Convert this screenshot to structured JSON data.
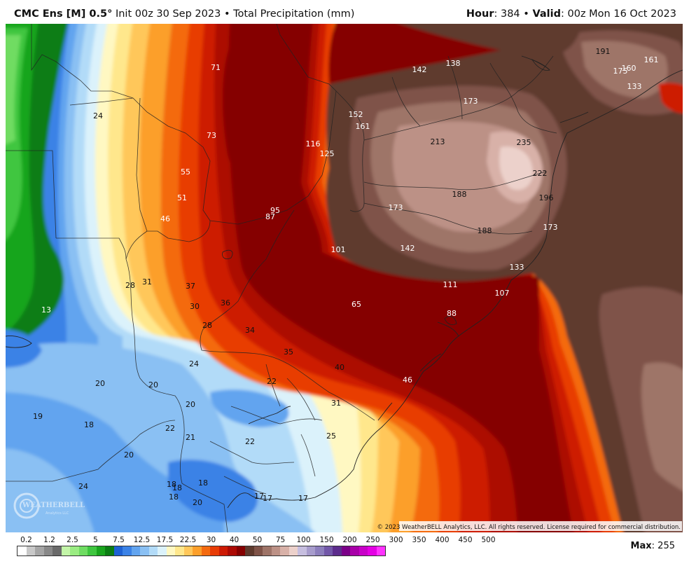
{
  "header": {
    "model_name": "CMC Ens [M] 0.5°",
    "init_text": "Init 00z 30 Sep 2023",
    "separator": "•",
    "field_name": "Total Precipitation (mm)",
    "hour_label": "Hour",
    "hour_value": "384",
    "valid_label": "Valid",
    "valid_value": "00z Mon 16 Oct 2023"
  },
  "watermark": {
    "logo_text": "WEATHERBELL",
    "logo_subtext": "Analytics LLC"
  },
  "copyright": "© 2023 WeatherBELL Analytics, LLC. All rights reserved. License required for commercial distribution.",
  "value_labels": [
    {
      "text": "71",
      "color": "#ffffff"
    },
    {
      "text": "24",
      "color": "#111111"
    },
    {
      "text": "73",
      "color": "#ffffff"
    },
    {
      "text": "55",
      "color": "#ffffff"
    },
    {
      "text": "51",
      "color": "#ffffff"
    },
    {
      "text": "46",
      "color": "#ffffff"
    },
    {
      "text": "116",
      "color": "#ffffff"
    },
    {
      "text": "125",
      "color": "#ffffff"
    },
    {
      "text": "95",
      "color": "#ffffff"
    },
    {
      "text": "87",
      "color": "#ffffff"
    },
    {
      "text": "142",
      "color": "#ffffff"
    },
    {
      "text": "138",
      "color": "#ffffff"
    },
    {
      "text": "191",
      "color": "#111111"
    },
    {
      "text": "175",
      "color": "#ffffff"
    },
    {
      "text": "160",
      "color": "#ffffff"
    },
    {
      "text": "161",
      "color": "#ffffff"
    },
    {
      "text": "133",
      "color": "#ffffff"
    },
    {
      "text": "152",
      "color": "#ffffff"
    },
    {
      "text": "161",
      "color": "#ffffff"
    },
    {
      "text": "173",
      "color": "#ffffff"
    },
    {
      "text": "213",
      "color": "#111111"
    },
    {
      "text": "235",
      "color": "#111111"
    },
    {
      "text": "222",
      "color": "#111111"
    },
    {
      "text": "188",
      "color": "#111111"
    },
    {
      "text": "196",
      "color": "#111111"
    },
    {
      "text": "173",
      "color": "#ffffff"
    },
    {
      "text": "188",
      "color": "#111111"
    },
    {
      "text": "173",
      "color": "#ffffff"
    },
    {
      "text": "101",
      "color": "#ffffff"
    },
    {
      "text": "142",
      "color": "#ffffff"
    },
    {
      "text": "133",
      "color": "#ffffff"
    },
    {
      "text": "111",
      "color": "#ffffff"
    },
    {
      "text": "107",
      "color": "#ffffff"
    },
    {
      "text": "88",
      "color": "#ffffff"
    },
    {
      "text": "65",
      "color": "#ffffff"
    },
    {
      "text": "13",
      "color": "#ffffff"
    },
    {
      "text": "28",
      "color": "#111111"
    },
    {
      "text": "31",
      "color": "#111111"
    },
    {
      "text": "37",
      "color": "#111111"
    },
    {
      "text": "30",
      "color": "#111111"
    },
    {
      "text": "36",
      "color": "#111111"
    },
    {
      "text": "28",
      "color": "#111111"
    },
    {
      "text": "34",
      "color": "#111111"
    },
    {
      "text": "35",
      "color": "#111111"
    },
    {
      "text": "40",
      "color": "#111111"
    },
    {
      "text": "46",
      "color": "#ffffff"
    },
    {
      "text": "24",
      "color": "#111111"
    },
    {
      "text": "22",
      "color": "#111111"
    },
    {
      "text": "20",
      "color": "#111111"
    },
    {
      "text": "20",
      "color": "#111111"
    },
    {
      "text": "20",
      "color": "#111111"
    },
    {
      "text": "31",
      "color": "#111111"
    },
    {
      "text": "19",
      "color": "#111111"
    },
    {
      "text": "18",
      "color": "#111111"
    },
    {
      "text": "22",
      "color": "#111111"
    },
    {
      "text": "21",
      "color": "#111111"
    },
    {
      "text": "22",
      "color": "#111111"
    },
    {
      "text": "25",
      "color": "#111111"
    },
    {
      "text": "20",
      "color": "#111111"
    },
    {
      "text": "24",
      "color": "#111111"
    },
    {
      "text": "18",
      "color": "#111111"
    },
    {
      "text": "18",
      "color": "#111111"
    },
    {
      "text": "18",
      "color": "#111111"
    },
    {
      "text": "18",
      "color": "#111111"
    },
    {
      "text": "20",
      "color": "#111111"
    },
    {
      "text": "17",
      "color": "#111111"
    },
    {
      "text": "17",
      "color": "#111111"
    },
    {
      "text": "17",
      "color": "#111111"
    }
  ],
  "legend": {
    "tick_labels": [
      "0.2",
      "1.2",
      "2.5",
      "5",
      "7.5",
      "12.5",
      "17.5",
      "22.5",
      "30",
      "40",
      "50",
      "75",
      "100",
      "150",
      "200",
      "250",
      "300",
      "350",
      "400",
      "450",
      "500"
    ],
    "colors": [
      "#ffffff",
      "#c8c8c8",
      "#a5a5a5",
      "#888888",
      "#6a6a6a",
      "#c3f5a8",
      "#9aec82",
      "#6fdc62",
      "#3fc63f",
      "#19a51d",
      "#0b7d13",
      "#1e62d4",
      "#3b82e6",
      "#62a4ef",
      "#8ac0f3",
      "#b2dbf8",
      "#dbf2fb",
      "#fff8c2",
      "#ffe78c",
      "#ffc75a",
      "#fc9f2a",
      "#f46a0f",
      "#e83c06",
      "#cd1a04",
      "#ac0a04",
      "#850000",
      "#5e3a2d",
      "#7f5348",
      "#9e7468",
      "#bc9186",
      "#d8b1a8",
      "#ecd1cb",
      "#c6bedf",
      "#a79ccc",
      "#8c7ebc",
      "#7257a8",
      "#5c2c8c",
      "#7b0088",
      "#a800a8",
      "#c800c8",
      "#e400e4",
      "#ff33ff"
    ],
    "max_label": "Max",
    "max_value": "255"
  }
}
